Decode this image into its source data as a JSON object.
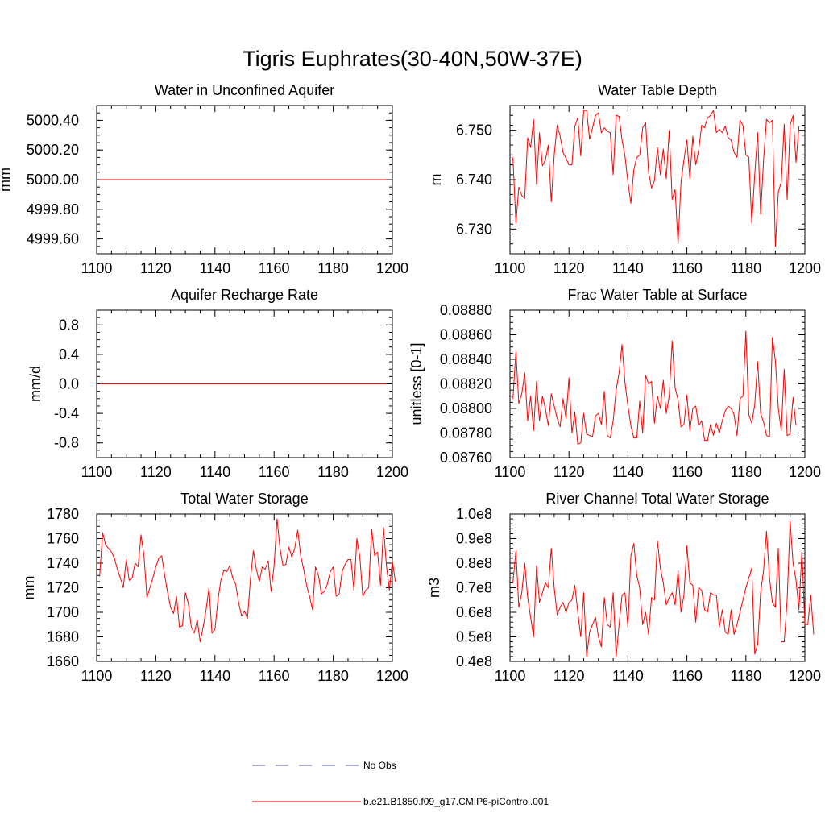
{
  "title": "Tigris Euphrates(30-40N,50W-37E)",
  "colors": {
    "model": "#ff0000",
    "obs": "#5a5ab4",
    "axis": "#000000"
  },
  "legend": {
    "obs_label": "No Obs",
    "model_label": "b.e21.B1850.f09_g17.CMIP6-piControl.001"
  },
  "chart_data": [
    {
      "type": "line",
      "title": "Water in Unconfined Aquifer",
      "xlabel": "",
      "ylabel": "mm",
      "xlim": [
        1100,
        1200
      ],
      "ylim": [
        4999.5,
        5000.5
      ],
      "xticks": [
        1100,
        1120,
        1140,
        1160,
        1180,
        1200
      ],
      "xtick_labels": [
        "1100",
        "1120",
        "1140",
        "1160",
        "1180",
        "1200"
      ],
      "yticks": [
        4999.6,
        4999.8,
        5000.0,
        5000.2,
        5000.4
      ],
      "ytick_labels": [
        "4999.60",
        "4999.80",
        "5000.00",
        "5000.20",
        "5000.40"
      ],
      "minor_y": 0.05,
      "series": [
        {
          "name": "b.e21.B1850.f09_g17.CMIP6-piControl.001",
          "x_start": 1101,
          "values": [
            5000.0,
            5000.0
          ],
          "x_end": 1198
        }
      ]
    },
    {
      "type": "line",
      "title": "Water Table Depth",
      "xlabel": "",
      "ylabel": "m",
      "xlim": [
        1100,
        1200
      ],
      "ylim": [
        6.725,
        6.755
      ],
      "xticks": [
        1100,
        1120,
        1140,
        1160,
        1180,
        1200
      ],
      "xtick_labels": [
        "1100",
        "1120",
        "1140",
        "1160",
        "1180",
        "1200"
      ],
      "yticks": [
        6.73,
        6.74,
        6.75
      ],
      "ytick_labels": [
        "6.730",
        "6.740",
        "6.750"
      ],
      "minor_y": 0.002,
      "series": [
        {
          "name": "b.e21.B1850.f09_g17.CMIP6-piControl.001",
          "x_start": 1101,
          "values": [
            6.7445,
            6.7312,
            6.7385,
            6.7368,
            6.7362,
            6.7485,
            6.7465,
            6.7522,
            6.739,
            6.7495,
            6.7428,
            6.744,
            6.747,
            6.7355,
            6.745,
            6.751,
            6.7488,
            6.7455,
            6.7443,
            6.743,
            6.743,
            6.7508,
            6.7525,
            6.7448,
            6.754,
            6.754,
            6.7482,
            6.7505,
            6.753,
            6.7535,
            6.7495,
            6.7505,
            6.7498,
            6.7495,
            6.741,
            6.753,
            6.7528,
            6.748,
            6.7448,
            6.7395,
            6.7352,
            6.742,
            6.7445,
            6.745,
            6.7505,
            6.7515,
            6.7415,
            6.7383,
            6.7398,
            6.7465,
            6.741,
            6.7462,
            6.7402,
            6.75,
            6.736,
            6.738,
            6.727,
            6.7395,
            6.744,
            6.748,
            6.7402,
            6.7488,
            6.743,
            6.746,
            6.751,
            6.7505,
            6.7525,
            6.753,
            6.754,
            6.7495,
            6.7502,
            6.7495,
            6.7508,
            6.7485,
            6.748,
            6.7455,
            6.7445,
            6.752,
            6.751,
            6.745,
            6.7445,
            6.7312,
            6.741,
            6.7495,
            6.733,
            6.744,
            6.7522,
            6.7515,
            6.752,
            6.7265,
            6.7375,
            6.7395,
            6.7512,
            6.736,
            6.751,
            6.753,
            6.7435,
            6.7508
          ]
        }
      ]
    },
    {
      "type": "line",
      "title": "Aquifer Recharge Rate",
      "xlabel": "",
      "ylabel": "mm/d",
      "xlim": [
        1100,
        1200
      ],
      "ylim": [
        -1.0,
        1.0
      ],
      "xticks": [
        1100,
        1120,
        1140,
        1160,
        1180,
        1200
      ],
      "xtick_labels": [
        "1100",
        "1120",
        "1140",
        "1160",
        "1180",
        "1200"
      ],
      "yticks": [
        -0.8,
        -0.4,
        0.0,
        0.4,
        0.8
      ],
      "ytick_labels": [
        "-0.8",
        "-0.4",
        "0.0",
        "0.4",
        "0.8"
      ],
      "minor_y": 0.1,
      "series": [
        {
          "name": "b.e21.B1850.f09_g17.CMIP6-piControl.001",
          "x_start": 1101,
          "values": [
            0.0,
            0.0
          ],
          "x_end": 1198
        }
      ]
    },
    {
      "type": "line",
      "title": "Frac Water Table at Surface",
      "xlabel": "",
      "ylabel": "unitless [0-1]",
      "xlim": [
        1100,
        1200
      ],
      "ylim": [
        0.0876,
        0.0888
      ],
      "xticks": [
        1100,
        1120,
        1140,
        1160,
        1180,
        1200
      ],
      "xtick_labels": [
        "1100",
        "1120",
        "1140",
        "1160",
        "1180",
        "1200"
      ],
      "yticks": [
        0.0876,
        0.0878,
        0.088,
        0.0882,
        0.0884,
        0.0886,
        0.0888
      ],
      "ytick_labels": [
        "0.08760",
        "0.08780",
        "0.08800",
        "0.08820",
        "0.08840",
        "0.08860",
        "0.08880"
      ],
      "minor_y": 5e-05,
      "series": [
        {
          "name": "b.e21.B1850.f09_g17.CMIP6-piControl.001",
          "x_start": 1101,
          "values": [
            0.08808,
            0.08846,
            0.08804,
            0.08812,
            0.08829,
            0.0879,
            0.0881,
            0.08782,
            0.08822,
            0.0879,
            0.0881,
            0.088,
            0.08786,
            0.08812,
            0.08802,
            0.08792,
            0.08785,
            0.08808,
            0.08792,
            0.08825,
            0.0878,
            0.08797,
            0.08771,
            0.08772,
            0.08796,
            0.08779,
            0.08778,
            0.08777,
            0.08794,
            0.08796,
            0.08787,
            0.08814,
            0.08778,
            0.08776,
            0.0879,
            0.08815,
            0.08829,
            0.08852,
            0.08821,
            0.08802,
            0.08786,
            0.08776,
            0.08776,
            0.08806,
            0.0878,
            0.08827,
            0.0882,
            0.08822,
            0.08788,
            0.0881,
            0.088,
            0.08823,
            0.08796,
            0.0881,
            0.08855,
            0.08817,
            0.08807,
            0.08785,
            0.08787,
            0.08811,
            0.08782,
            0.088,
            0.08802,
            0.08786,
            0.0879,
            0.08774,
            0.08774,
            0.08787,
            0.08778,
            0.08788,
            0.0878,
            0.0879,
            0.08798,
            0.08802,
            0.088,
            0.08795,
            0.08778,
            0.08808,
            0.0881,
            0.08863,
            0.08795,
            0.08788,
            0.08803,
            0.08838,
            0.08796,
            0.08789,
            0.08778,
            0.08777,
            0.08858,
            0.08839,
            0.088,
            0.08782,
            0.08832,
            0.08778,
            0.08779,
            0.08809,
            0.08786
          ]
        }
      ]
    },
    {
      "type": "line",
      "title": "Total Water Storage",
      "xlabel": "",
      "ylabel": "mm",
      "xlim": [
        1100,
        1200
      ],
      "ylim": [
        1660,
        1780
      ],
      "xticks": [
        1100,
        1120,
        1140,
        1160,
        1180,
        1200
      ],
      "xtick_labels": [
        "1100",
        "1120",
        "1140",
        "1160",
        "1180",
        "1200"
      ],
      "yticks": [
        1660,
        1680,
        1700,
        1720,
        1740,
        1760,
        1780
      ],
      "ytick_labels": [
        "1660",
        "1680",
        "1700",
        "1720",
        "1740",
        "1760",
        "1780"
      ],
      "minor_y": 5,
      "series": [
        {
          "name": "b.e21.B1850.f09_g17.CMIP6-piControl.001",
          "x_start": 1101,
          "values": [
            1729,
            1765,
            1755,
            1752,
            1749,
            1744,
            1735,
            1728,
            1720,
            1743,
            1726,
            1728,
            1740,
            1737,
            1763,
            1746,
            1712,
            1720,
            1728,
            1737,
            1744,
            1746,
            1730,
            1716,
            1704,
            1699,
            1713,
            1688,
            1689,
            1716,
            1707,
            1688,
            1683,
            1694,
            1676,
            1688,
            1702,
            1720,
            1683,
            1686,
            1710,
            1726,
            1734,
            1733,
            1738,
            1728,
            1723,
            1708,
            1697,
            1701,
            1695,
            1727,
            1750,
            1735,
            1725,
            1737,
            1735,
            1742,
            1717,
            1738,
            1776,
            1752,
            1738,
            1739,
            1753,
            1745,
            1752,
            1767,
            1746,
            1735,
            1722,
            1713,
            1702,
            1737,
            1730,
            1715,
            1717,
            1723,
            1733,
            1737,
            1713,
            1715,
            1733,
            1739,
            1743,
            1743,
            1718,
            1760,
            1745,
            1713,
            1718,
            1720,
            1768,
            1746,
            1749,
            1722,
            1769,
            1738,
            1718,
            1742,
            1725
          ]
        }
      ]
    },
    {
      "type": "line",
      "title": "River Channel Total Water Storage",
      "xlabel": "",
      "ylabel": "m3",
      "xlim": [
        1100,
        1200
      ],
      "ylim": [
        40000000.0,
        100000000.0
      ],
      "xticks": [
        1100,
        1120,
        1140,
        1160,
        1180,
        1200
      ],
      "xtick_labels": [
        "1100",
        "1120",
        "1140",
        "1160",
        "1180",
        "1200"
      ],
      "yticks": [
        40000000.0,
        50000000.0,
        60000000.0,
        70000000.0,
        80000000.0,
        90000000.0,
        100000000.0
      ],
      "ytick_labels": [
        "0.4e8",
        "0.5e8",
        "0.6e8",
        "0.7e8",
        "0.8e8",
        "0.9e8",
        "1.0e8"
      ],
      "minor_y": 2000000.0,
      "series": [
        {
          "name": "b.e21.B1850.f09_g17.CMIP6-piControl.001",
          "x_start": 1101,
          "values": [
            72000000.0,
            85000000.0,
            62000000.0,
            68000000.0,
            80000000.0,
            66000000.0,
            58000000.0,
            50000000.0,
            79000000.0,
            64000000.0,
            68000000.0,
            72000000.0,
            70000000.0,
            86000000.0,
            70000000.0,
            59000000.0,
            62000000.0,
            64000000.0,
            60000000.0,
            64000000.0,
            65000000.0,
            71000000.0,
            60000000.0,
            50000000.0,
            68000000.0,
            42000000.0,
            52000000.0,
            55000000.0,
            58000000.0,
            50000000.0,
            46000000.0,
            66000000.0,
            55000000.0,
            54000000.0,
            68000000.0,
            42000000.0,
            55000000.0,
            67000000.0,
            68000000.0,
            54000000.0,
            83000000.0,
            88000000.0,
            75000000.0,
            70000000.0,
            55000000.0,
            60000000.0,
            51000000.0,
            66000000.0,
            65000000.0,
            89000000.0,
            78000000.0,
            72000000.0,
            63000000.0,
            66000000.0,
            68000000.0,
            63000000.0,
            77000000.0,
            60000000.0,
            67000000.0,
            87000000.0,
            72000000.0,
            71000000.0,
            56000000.0,
            70000000.0,
            69000000.0,
            61000000.0,
            60000000.0,
            68000000.0,
            67000000.0,
            67000000.0,
            54000000.0,
            61000000.0,
            52000000.0,
            51000000.0,
            61000000.0,
            51000000.0,
            55000000.0,
            60000000.0,
            65000000.0,
            70000000.0,
            74000000.0,
            78000000.0,
            43000000.0,
            47000000.0,
            68000000.0,
            77000000.0,
            93000000.0,
            74000000.0,
            64000000.0,
            62000000.0,
            86000000.0,
            48000000.0,
            48000000.0,
            65000000.0,
            97000000.0,
            80000000.0,
            73000000.0,
            61000000.0,
            85000000.0,
            55000000.0,
            55000000.0,
            67000000.0,
            51000000.0
          ]
        }
      ]
    }
  ]
}
